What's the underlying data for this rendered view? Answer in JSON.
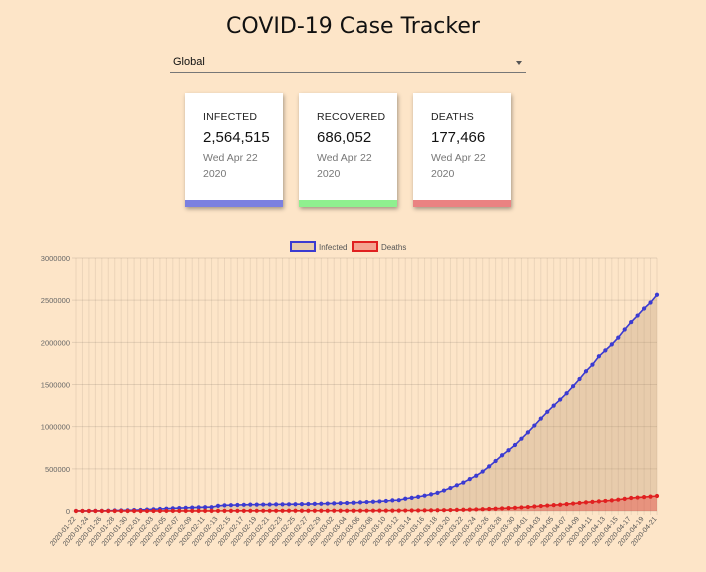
{
  "page": {
    "title": "COVID-19 Case Tracker"
  },
  "country_select": {
    "value": "Global"
  },
  "cards": [
    {
      "label": "INFECTED",
      "value": "2,564,515",
      "date": "Wed Apr 22 2020",
      "color": "#7b80e0"
    },
    {
      "label": "RECOVERED",
      "value": "686,052",
      "date": "Wed Apr 22 2020",
      "color": "#8ff08f"
    },
    {
      "label": "DEATHS",
      "value": "177,466",
      "date": "Wed Apr 22 2020",
      "color": "#ea8282"
    }
  ],
  "chart_data": {
    "type": "line",
    "legend_position": "top",
    "grid": true,
    "ylim": [
      0,
      3000000
    ],
    "yticks": [
      0,
      500000,
      1000000,
      1500000,
      2000000,
      2500000,
      3000000
    ],
    "x": [
      "2020-01-22",
      "2020-01-23",
      "2020-01-24",
      "2020-01-25",
      "2020-01-26",
      "2020-01-27",
      "2020-01-28",
      "2020-01-29",
      "2020-01-30",
      "2020-01-31",
      "2020-02-01",
      "2020-02-02",
      "2020-02-03",
      "2020-02-04",
      "2020-02-05",
      "2020-02-06",
      "2020-02-07",
      "2020-02-08",
      "2020-02-09",
      "2020-02-10",
      "2020-02-11",
      "2020-02-12",
      "2020-02-13",
      "2020-02-14",
      "2020-02-15",
      "2020-02-16",
      "2020-02-17",
      "2020-02-18",
      "2020-02-19",
      "2020-02-20",
      "2020-02-21",
      "2020-02-22",
      "2020-02-23",
      "2020-02-24",
      "2020-02-25",
      "2020-02-26",
      "2020-02-27",
      "2020-02-28",
      "2020-02-29",
      "2020-03-01",
      "2020-03-02",
      "2020-03-03",
      "2020-03-04",
      "2020-03-05",
      "2020-03-06",
      "2020-03-07",
      "2020-03-08",
      "2020-03-09",
      "2020-03-10",
      "2020-03-11",
      "2020-03-12",
      "2020-03-13",
      "2020-03-14",
      "2020-03-15",
      "2020-03-16",
      "2020-03-17",
      "2020-03-18",
      "2020-03-19",
      "2020-03-20",
      "2020-03-21",
      "2020-03-22",
      "2020-03-23",
      "2020-03-24",
      "2020-03-25",
      "2020-03-26",
      "2020-03-27",
      "2020-03-28",
      "2020-03-29",
      "2020-03-30",
      "2020-03-31",
      "2020-04-01",
      "2020-04-02",
      "2020-04-03",
      "2020-04-04",
      "2020-04-05",
      "2020-04-06",
      "2020-04-07",
      "2020-04-08",
      "2020-04-09",
      "2020-04-10",
      "2020-04-11",
      "2020-04-12",
      "2020-04-13",
      "2020-04-14",
      "2020-04-15",
      "2020-04-16",
      "2020-04-17",
      "2020-04-18",
      "2020-04-19",
      "2020-04-20",
      "2020-04-21"
    ],
    "series": [
      {
        "name": "Infected",
        "color": "#3b3bd1",
        "fill": "rgba(180,140,100,0.28)",
        "values": [
          555,
          654,
          941,
          1434,
          2118,
          2927,
          5578,
          6166,
          8234,
          9927,
          12038,
          16787,
          19881,
          23892,
          27635,
          30817,
          34391,
          37120,
          40150,
          42762,
          44802,
          45221,
          60368,
          66885,
          69030,
          71224,
          73258,
          75136,
          75639,
          76197,
          76819,
          78572,
          78958,
          79561,
          80406,
          81388,
          82746,
          84112,
          86011,
          88369,
          90306,
          92840,
          95120,
          97886,
          101801,
          105847,
          109821,
          113590,
          118620,
          125875,
          128352,
          145205,
          156101,
          167454,
          181574,
          197102,
          214821,
          242570,
          272208,
          304507,
          336953,
          378235,
          418045,
          467653,
          529591,
          593291,
          660706,
          720117,
          782365,
          857487,
          932605,
          1013157,
          1095917,
          1176060,
          1249754,
          1321481,
          1396476,
          1479804,
          1565278,
          1657526,
          1735650,
          1834721,
          1904838,
          1975581,
          2056054,
          2152437,
          2240190,
          2317758,
          2401378,
          2472259,
          2564515
        ]
      },
      {
        "name": "Deaths",
        "color": "#e02020",
        "fill": "rgba(230,40,40,0.35)",
        "values": [
          17,
          18,
          26,
          42,
          56,
          82,
          131,
          133,
          171,
          213,
          259,
          362,
          426,
          492,
          564,
          634,
          719,
          806,
          906,
          1013,
          1113,
          1118,
          1371,
          1523,
          1666,
          1770,
          1868,
          2007,
          2122,
          2247,
          2251,
          2458,
          2469,
          2629,
          2708,
          2770,
          2814,
          2872,
          2941,
          2996,
          3085,
          3160,
          3254,
          3348,
          3460,
          3558,
          3802,
          3988,
          4262,
          4615,
          4720,
          5404,
          5819,
          6440,
          7126,
          7905,
          8733,
          9867,
          11299,
          12973,
          14623,
          16497,
          18615,
          21181,
          23970,
          27198,
          30652,
          33925,
          37582,
          42107,
          46809,
          52983,
          58787,
          64606,
          69374,
          74565,
          81865,
          88338,
          95455,
          102525,
          108502,
          114090,
          119482,
          125983,
          134177,
          143800,
          153822,
          159510,
          165044,
          170422,
          177466
        ]
      }
    ]
  }
}
